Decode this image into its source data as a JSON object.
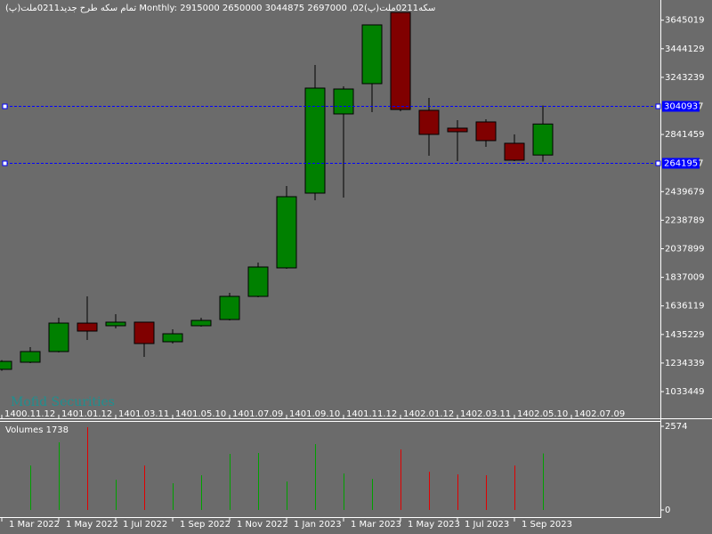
{
  "chart_data": [
    {
      "type": "candlestick",
      "title": "سکه0211ملت(پ)02, Monthly:  2915000 2650000 3044875 2697000  تمام سکه طرح جدید0211ملت(پ)",
      "annotation": "Mofid Securities",
      "categories": [
        "1400.11.12",
        null,
        "1401.01.12",
        null,
        "1401.03.11",
        null,
        "1401.05.10",
        null,
        "1401.07.09",
        null,
        "1401.09.10",
        null,
        "1401.11.12",
        null,
        "1402.01.12",
        null,
        "1402.03.11",
        null,
        "1402.05.10",
        null,
        "1402.07.09"
      ],
      "open": [
        1190000,
        1240000,
        1315000,
        1515000,
        1496600,
        1521600,
        1383900,
        1496600,
        1540400,
        1703100,
        1903400,
        2429000,
        2986000,
        3198800,
        3699500,
        3011100,
        2885900,
        2929700,
        2779500,
        2697000,
        null
      ],
      "high": [
        1255000,
        1346400,
        1552900,
        1703100,
        1577900,
        1522000,
        1471500,
        1552900,
        1728100,
        1940900,
        2479100,
        3330200,
        3180000,
        3612000,
        3699500,
        3098700,
        2942200,
        2948500,
        2842100,
        3044875,
        null
      ],
      "low": [
        1180000,
        1233700,
        1308800,
        1396400,
        1477800,
        1277500,
        1371400,
        1490300,
        1534100,
        1696800,
        1897100,
        2379000,
        2397800,
        2998600,
        3004800,
        2691900,
        2654300,
        2754400,
        2654300,
        2650000,
        null
      ],
      "close": [
        1246000,
        1315000,
        1515300,
        1459000,
        1521600,
        1371400,
        1440200,
        1534100,
        1703100,
        1909600,
        2404000,
        3167500,
        3161200,
        3611900,
        3017300,
        2842100,
        2860800,
        2798300,
        2660600,
        2915000,
        null
      ],
      "up_color": "#008000",
      "down_color": "#800000",
      "ylim": [
        845700,
        3787000
      ],
      "yticks": [
        1033449,
        1234339,
        1435229,
        1636119,
        1837009,
        2037899,
        2238789,
        2439679,
        2841459,
        3243239,
        3444129,
        3645019
      ],
      "hlines": [
        3040937,
        2641957
      ],
      "hline_color": "#0000ff"
    },
    {
      "type": "bar",
      "title": "Volumes 1738",
      "categories": [
        "1 Mar 2022",
        null,
        "1 May 2022",
        null,
        "1 Jul 2022",
        null,
        "1 Sep 2022",
        null,
        "1 Nov 2022",
        null,
        "1 Jan 2023",
        null,
        "1 Mar 2023",
        null,
        "1 May 2023",
        null,
        "1 Jul 2023",
        null,
        "1 Sep 2023",
        null
      ],
      "values": [
        null,
        1369,
        2081,
        2547,
        931,
        1369,
        821,
        1068,
        1725,
        1752,
        876,
        2026,
        1123,
        958,
        1862,
        1177,
        1095,
        1068,
        1369,
        1738
      ],
      "ylim": [
        0,
        2574
      ],
      "yticks": [
        0,
        2574
      ]
    }
  ]
}
